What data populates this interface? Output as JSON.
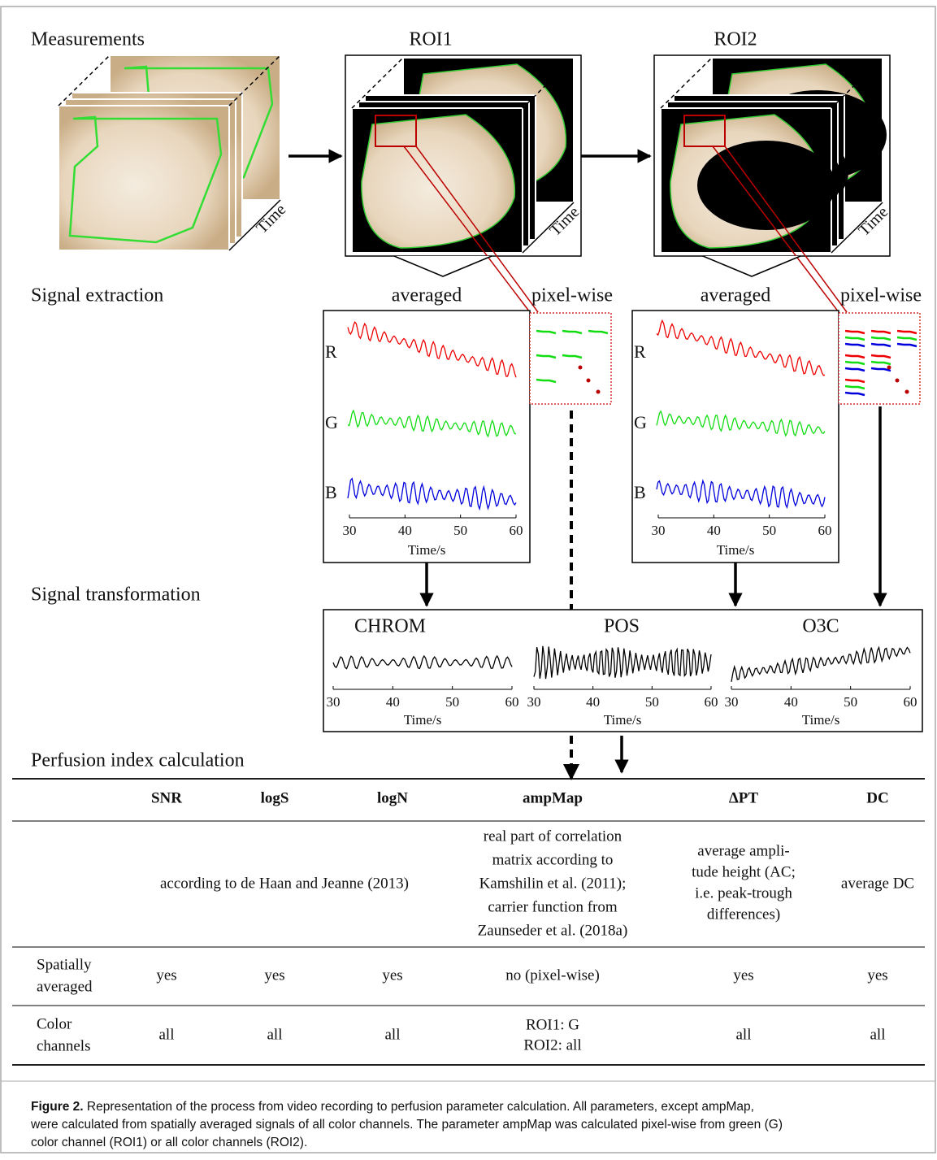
{
  "header": {
    "measurements": "Measurements",
    "roi1": "ROI1",
    "roi2": "ROI2",
    "time_label": "Time"
  },
  "sections": [
    "Signal extraction",
    "Signal transformation",
    "Perfusion index calculation"
  ],
  "extraction": {
    "averaged": "averaged",
    "pixel_wise": "pixel-wise",
    "channels": [
      "R",
      "G",
      "B"
    ],
    "xticks": [
      30,
      40,
      50,
      60
    ],
    "xlabel": "Time/s"
  },
  "transformation": {
    "methods": [
      "CHROM",
      "POS",
      "O3C"
    ],
    "xticks": [
      30,
      40,
      50,
      60
    ],
    "xlabel": "Time/s"
  },
  "table": {
    "header": [
      "SNR",
      "logS",
      "logN",
      "ampMap",
      "ΔPT",
      "DC"
    ],
    "definition": {
      "shared": "according to de Haan and Jeanne (2013)",
      "ampmap": [
        "real part of correlation",
        "matrix according to",
        "Kamshilin et al. (2011);",
        "carrier function from",
        "Zaunseder et al. (2018a)"
      ],
      "dpt": [
        "average ampli-",
        "tude height (AC;",
        "i.e. peak-trough",
        "differences)"
      ],
      "dc": "average DC"
    },
    "rows": [
      {
        "label": [
          "Spatially",
          "averaged"
        ],
        "cells": [
          "yes",
          "yes",
          "yes",
          "no (pixel-wise)",
          "yes",
          "yes"
        ]
      },
      {
        "label": [
          "Color",
          "channels"
        ],
        "cells": [
          "all",
          "all",
          "all",
          [
            "ROI1:  G",
            "ROI2:  all"
          ],
          "all",
          "all"
        ]
      }
    ]
  },
  "caption": {
    "label": "Figure 2.",
    "lines": [
      " Representation of the process from video recording to perfusion parameter calculation. All parameters, except ampMap,",
      "were calculated from spatially averaged signals of all color channels. The parameter ampMap was calculated pixel-wise from green (G)",
      "color channel (ROI1) or all color channels (ROI2)."
    ]
  }
}
